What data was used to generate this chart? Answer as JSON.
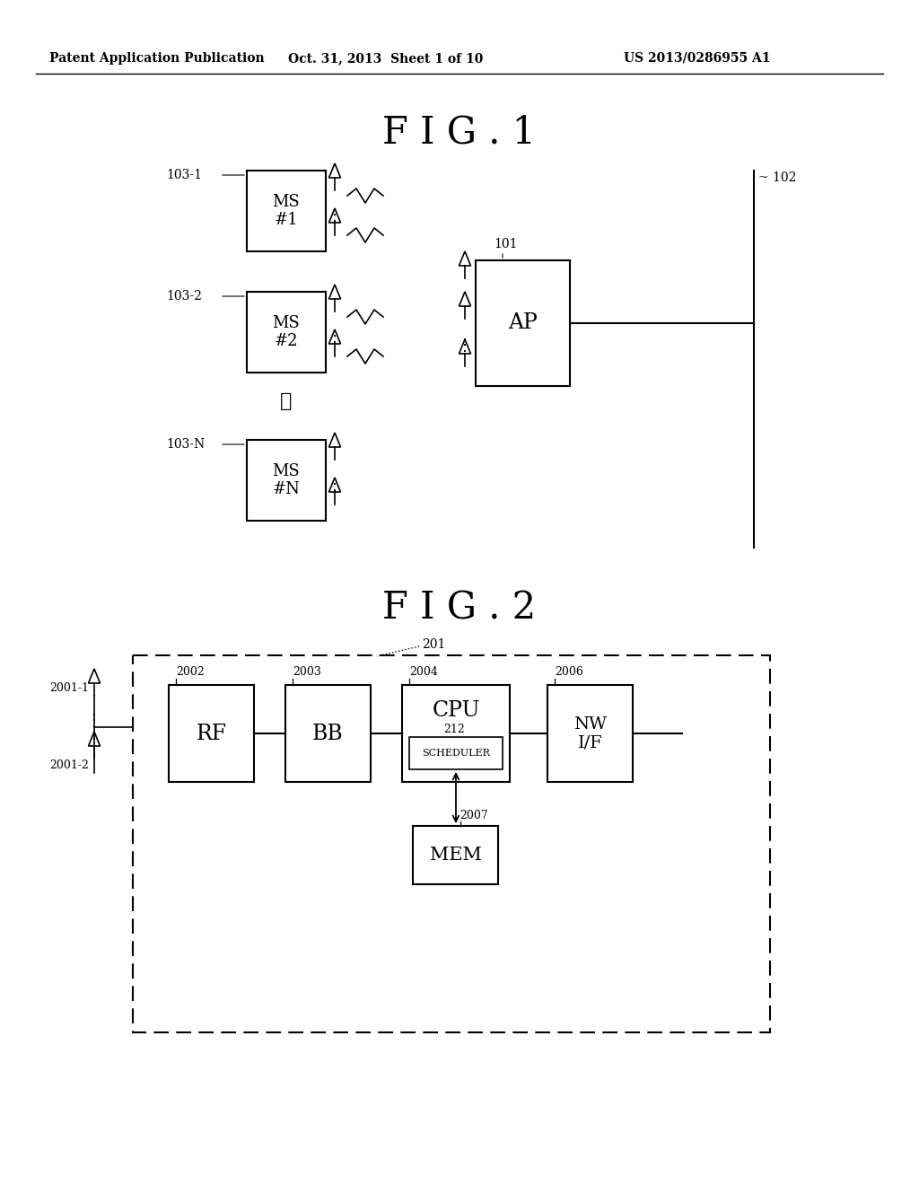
{
  "background_color": "#ffffff",
  "header_left": "Patent Application Publication",
  "header_mid": "Oct. 31, 2013  Sheet 1 of 10",
  "header_right": "US 2013/0286955 A1",
  "fig1_title": "F I G . 1",
  "fig2_title": "F I G . 2",
  "line_color": "#000000"
}
